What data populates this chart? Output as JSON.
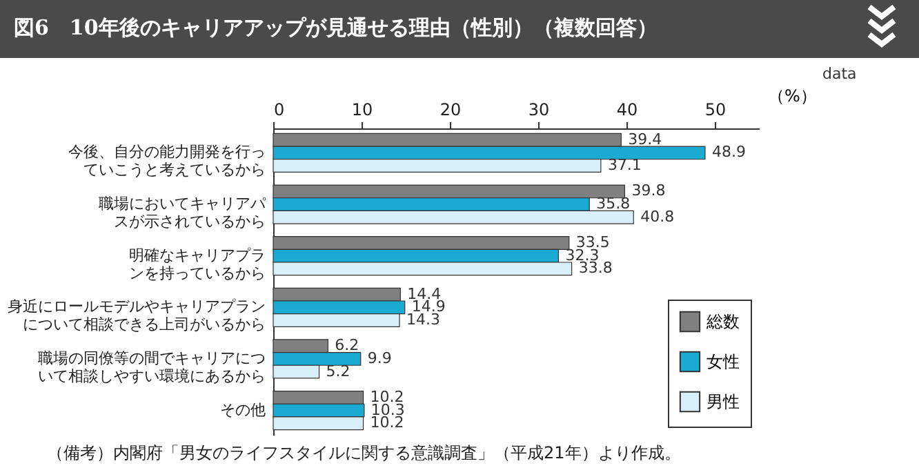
{
  "chart_data": {
    "type": "bar",
    "orientation": "horizontal",
    "title": "図6　10年後のキャリアアップが見通せる理由（性別）（複数回答）",
    "xlabel": "（%）",
    "categories": [
      "今後、自分の能力開発を行っていこうと考えているから",
      "職場においてキャリアパスが示されているから",
      "明確なキャリアプランを持っているから",
      "身近にロールモデルやキャリアプランについて相談できる上司がいるから",
      "職場の同僚等の間でキャリアについて相談しやすい環境にあるから",
      "その他"
    ],
    "series": [
      {
        "name": "総数",
        "color": "#808080",
        "values": [
          39.4,
          39.8,
          33.5,
          14.4,
          6.2,
          10.2
        ]
      },
      {
        "name": "女性",
        "color": "#1aaad2",
        "values": [
          48.9,
          35.8,
          32.3,
          14.9,
          9.9,
          10.3
        ]
      },
      {
        "name": "男性",
        "color": "#d8eef8",
        "values": [
          37.1,
          40.8,
          33.8,
          14.3,
          5.2,
          10.2
        ]
      }
    ],
    "xlim": [
      0,
      55
    ],
    "xticks": [
      0,
      10,
      20,
      30,
      40,
      50
    ],
    "data_labels": true,
    "legend": "bottom right",
    "grid": false,
    "annotations": [
      "data",
      "（備考）内閣府「男女のライフスタイルに関する意識調査」（平成21年）より作成。"
    ]
  }
}
